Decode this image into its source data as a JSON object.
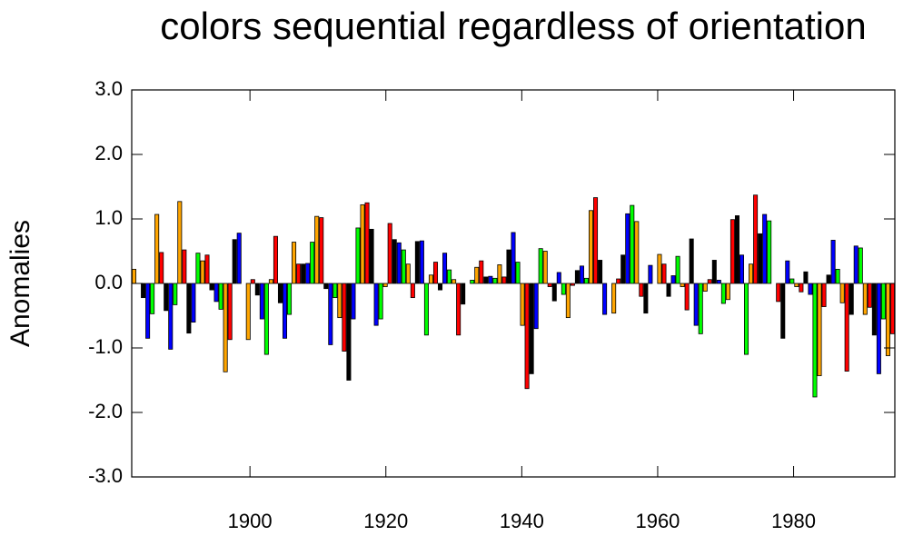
{
  "chart_data": {
    "type": "bar",
    "title": "colors sequential regardless of orientation",
    "ylabel": "Anomalies",
    "colors": [
      "#ffa500",
      "#ff0000",
      "#000000",
      "#0000ff",
      "#00ff00"
    ],
    "values": [
      0.22,
      null,
      -0.22,
      -0.85,
      -0.47,
      1.07,
      0.48,
      -0.42,
      -1.02,
      -0.33,
      1.27,
      0.52,
      -0.77,
      -0.6,
      0.47,
      0.35,
      0.44,
      -0.1,
      -0.28,
      -0.4,
      -1.37,
      -0.87,
      0.68,
      0.78,
      0.0,
      -0.87,
      0.06,
      -0.18,
      -0.55,
      -1.1,
      0.06,
      0.73,
      -0.3,
      -0.85,
      -0.48,
      0.64,
      0.3,
      0.3,
      0.31,
      0.64,
      1.04,
      1.02,
      -0.08,
      -0.95,
      -0.22,
      -0.53,
      -1.05,
      -1.5,
      -0.55,
      0.86,
      1.22,
      1.25,
      0.84,
      -0.65,
      -0.55,
      -0.05,
      0.93,
      0.68,
      0.63,
      0.52,
      0.3,
      -0.22,
      0.65,
      0.66,
      -0.8,
      0.13,
      0.33,
      -0.1,
      0.47,
      0.21,
      0.06,
      -0.8,
      -0.32,
      0.0,
      0.05,
      0.25,
      0.35,
      0.1,
      0.11,
      0.08,
      0.29,
      0.1,
      0.52,
      0.79,
      0.33,
      -0.65,
      -1.63,
      -1.4,
      -0.7,
      0.54,
      0.5,
      -0.05,
      -0.27,
      0.17,
      -0.17,
      -0.53,
      -0.03,
      0.2,
      0.27,
      0.08,
      1.13,
      1.33,
      0.36,
      -0.48,
      0.0,
      -0.46,
      0.07,
      0.44,
      1.08,
      1.21,
      0.96,
      -0.2,
      -0.46,
      0.28,
      0.0,
      0.45,
      0.3,
      -0.2,
      0.12,
      0.42,
      -0.05,
      -0.41,
      0.69,
      -0.65,
      -0.78,
      -0.12,
      0.06,
      0.36,
      0.05,
      -0.31,
      -0.25,
      0.99,
      1.05,
      0.44,
      -1.1,
      0.3,
      1.37,
      0.77,
      1.07,
      0.97,
      0.0,
      -0.28,
      -0.85,
      0.35,
      0.07,
      -0.05,
      -0.13,
      0.18,
      -0.17,
      -1.76,
      -1.43,
      -0.36,
      0.13,
      0.67,
      0.22,
      -0.3,
      -1.36,
      -0.48,
      0.58,
      0.55,
      -0.48,
      -0.37,
      -0.8,
      -1.4,
      -0.55,
      -1.12,
      -0.78
    ],
    "xlim": [
      1882.6,
      1994.9
    ],
    "xticks": [
      1900,
      1920,
      1940,
      1960,
      1980
    ],
    "ylim": [
      -3.0,
      3.0
    ],
    "yticks": [
      {
        "value": -3.0,
        "label": "-3.0"
      },
      {
        "value": -2.0,
        "label": "-2.0"
      },
      {
        "value": -1.0,
        "label": "-1.0"
      },
      {
        "value": 0.0,
        "label": "0.0"
      },
      {
        "value": 1.0,
        "label": "1.0"
      },
      {
        "value": 2.0,
        "label": "2.0"
      },
      {
        "value": 3.0,
        "label": "3.0"
      }
    ]
  }
}
